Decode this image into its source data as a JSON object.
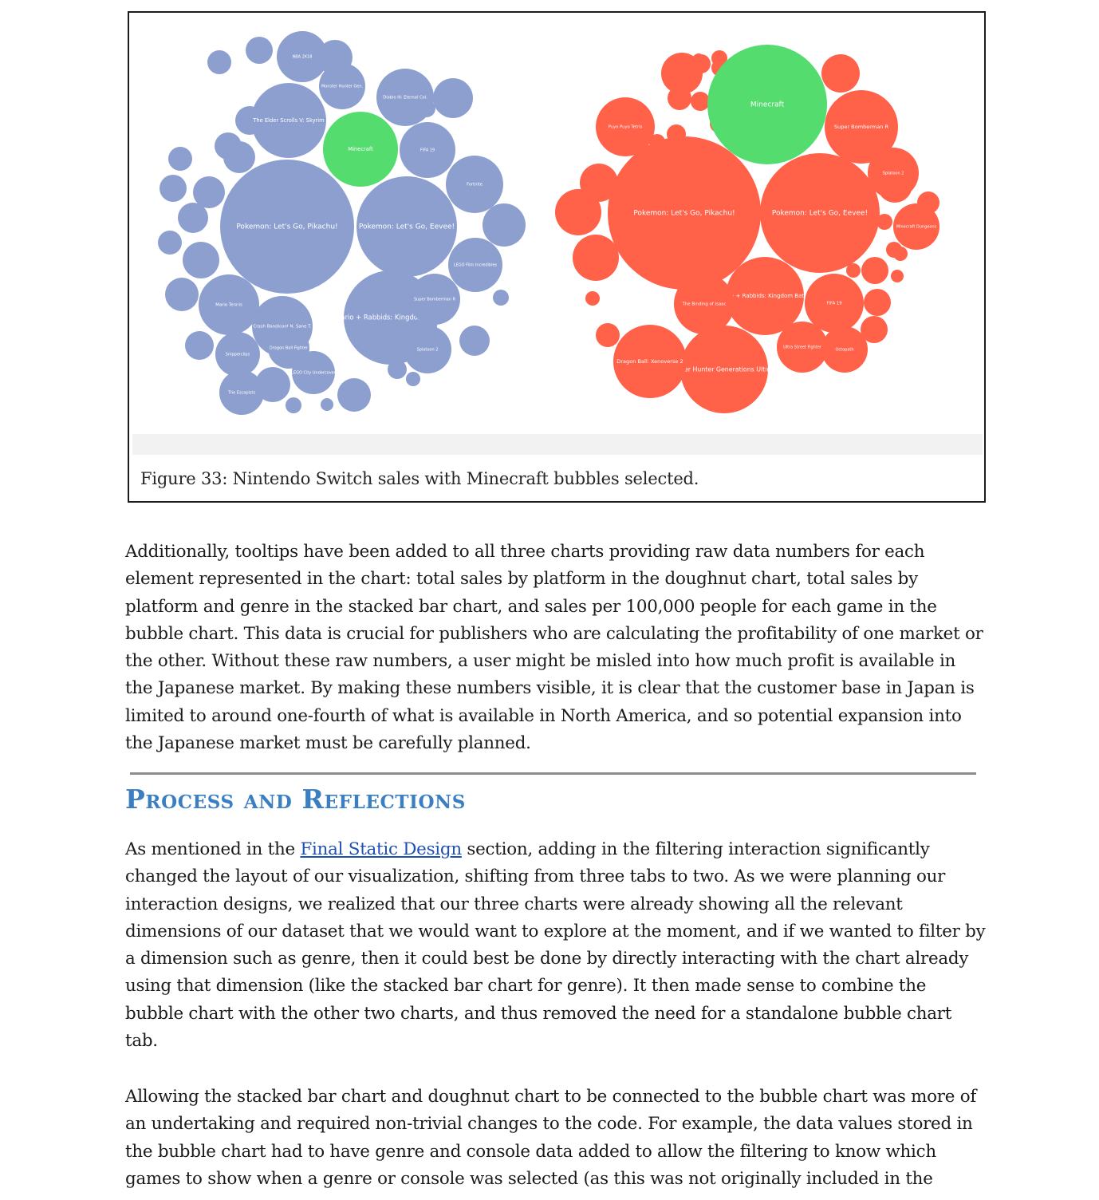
{
  "figure": {
    "caption": "Figure 33: Nintendo Switch sales with Minecraft bubbles selected.",
    "colors": {
      "left": "#8c9fcf",
      "right": "#ff6149",
      "selected": "#54dc6f"
    },
    "charts": [
      {
        "name": "left",
        "bubbles": [
          {
            "label": "Pokemon: Let's Go, Pikachu!",
            "r": 84,
            "selected": false
          },
          {
            "label": "Pokemon: Let's Go, Eevee!",
            "r": 63,
            "selected": false
          },
          {
            "label": "Mario + Rabbids: Kingdom Battle",
            "r": 59,
            "selected": false
          },
          {
            "label": "The Elder Scrolls V: Skyrim",
            "r": 47,
            "selected": false
          },
          {
            "label": "Minecraft",
            "r": 47,
            "selected": true
          },
          {
            "label": "Diablo III: Eternal Col.",
            "r": 36,
            "selected": false
          },
          {
            "label": "Crash Bandicoot N. Sane T.",
            "r": 38,
            "selected": false
          },
          {
            "label": "Monster Hunter Gen.",
            "r": 29,
            "selected": false
          },
          {
            "label": "Fortnite",
            "r": 36,
            "selected": false
          },
          {
            "label": "FIFA 19",
            "r": 35,
            "selected": false
          },
          {
            "label": "LEGO Film Incredibles",
            "r": 34,
            "selected": false
          },
          {
            "label": "Super Bomberman R",
            "r": 32,
            "selected": false
          },
          {
            "label": "NBA 2K18",
            "r": 32,
            "selected": false
          },
          {
            "label": "Mario Tennis",
            "r": 38,
            "selected": false
          },
          {
            "label": "Dragon Ball Fighter",
            "r": 26,
            "selected": false
          },
          {
            "label": "Splatoon 2",
            "r": 30,
            "selected": false
          },
          {
            "label": "Snipperclips",
            "r": 28,
            "selected": false
          },
          {
            "label": "LEGO City Undercover",
            "r": 27,
            "selected": false
          },
          {
            "label": "The Escapists",
            "r": 28,
            "selected": false
          }
        ]
      },
      {
        "name": "right",
        "bubbles": [
          {
            "label": "Pokemon: Let's Go, Pikachu!",
            "r": 96,
            "selected": false
          },
          {
            "label": "Pokemon: Let's Go, Eevee!",
            "r": 75,
            "selected": false
          },
          {
            "label": "Minecraft",
            "r": 75,
            "selected": true
          },
          {
            "label": "Mario + Rabbids: Kingdom Battle",
            "r": 49,
            "selected": false
          },
          {
            "label": "Monster Hunter Generations Ultimate",
            "r": 55,
            "selected": false
          },
          {
            "label": "Dragon Ball: Xenoverse 2",
            "r": 46,
            "selected": false
          },
          {
            "label": "Super Bomberman R",
            "r": 46,
            "selected": false
          },
          {
            "label": "The Binding of Isaac",
            "r": 38,
            "selected": false
          },
          {
            "label": "Puyo Puyo Tetris",
            "r": 37,
            "selected": false
          },
          {
            "label": "FIFA 19",
            "r": 37,
            "selected": false
          },
          {
            "label": "Splatoon 2",
            "r": 32,
            "selected": false
          },
          {
            "label": "Ultra Street Fighter",
            "r": 32,
            "selected": false
          },
          {
            "label": "Minecraft Dungeons",
            "r": 29,
            "selected": false
          },
          {
            "label": "Octopath",
            "r": 29,
            "selected": false
          }
        ]
      }
    ]
  },
  "paragraphs": {
    "p1": "Additionally, tooltips have been added to all three charts providing raw data numbers for each element represented in the chart: total sales by platform in the doughnut chart, total sales by platform and genre in the stacked bar chart, and sales per 100,000 people for each game in the bubble chart. This data is crucial for publishers who are calculating the profitability of one market or the other. Without these raw numbers, a user might be misled into how much profit is available in the Japanese market. By making these numbers visible, it is clear that the customer base in Japan is limited to around one-fourth of what is available in North America, and so potential expansion into the Japanese market must be carefully planned.",
    "p2_before": "As mentioned in the ",
    "p2_link": "Final Static Design",
    "p2_after": " section, adding in the filtering interaction significantly changed the layout of our visualization, shifting from three tabs to two. As we were planning our interaction designs, we realized that our three charts were already showing all the relevant dimensions of our dataset that we would want to explore at the moment, and if we wanted to filter by a dimension such as genre, then it could best be done by directly interacting with the chart already using that dimension (like the stacked bar chart for genre). It then made sense to combine the bubble chart with the other two charts, and thus removed the need for a standalone bubble chart tab.",
    "p3": "Allowing the stacked bar chart and doughnut chart to be connected to the bubble chart was more of an undertaking and required non-trivial changes to the code. For example, the data values stored in the bubble chart had to have genre and console data added to allow the filtering to know which games to show when a genre or console was selected (as this was not originally included in the"
  },
  "heading": "Process and Reflections"
}
